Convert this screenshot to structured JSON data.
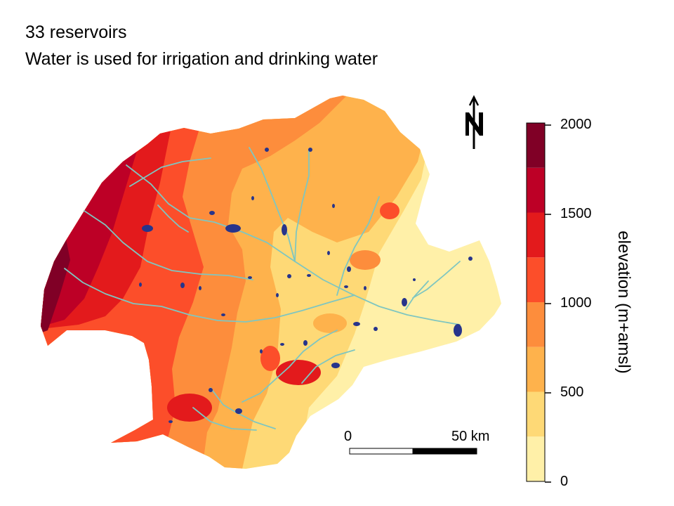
{
  "title_lines": [
    "33 reservoirs",
    "Water is used for irrigation and drinking water"
  ],
  "north_arrow": {
    "icon": "north-arrow-icon",
    "label": "N"
  },
  "scale_bar": {
    "labels": [
      "0",
      "50 km"
    ],
    "length_km": 50
  },
  "legend": {
    "title": "elevation (m+amsl)",
    "tick_labels": [
      "2000",
      "1500",
      "1000",
      "500",
      "0"
    ],
    "bins": [
      {
        "from": 0,
        "to": 250,
        "color": "#fff0a8"
      },
      {
        "from": 250,
        "to": 500,
        "color": "#fed976"
      },
      {
        "from": 500,
        "to": 750,
        "color": "#feb24c"
      },
      {
        "from": 750,
        "to": 1000,
        "color": "#fd8d3c"
      },
      {
        "from": 1000,
        "to": 1250,
        "color": "#fc4e2a"
      },
      {
        "from": 1250,
        "to": 1500,
        "color": "#e31a1c"
      },
      {
        "from": 1500,
        "to": 1750,
        "color": "#bd0026"
      },
      {
        "from": 1750,
        "to": 2000,
        "color": "#800026"
      }
    ]
  },
  "colors": {
    "river": "#7fc6c0",
    "reservoir": "#27348b"
  },
  "reservoir_count": 33
}
